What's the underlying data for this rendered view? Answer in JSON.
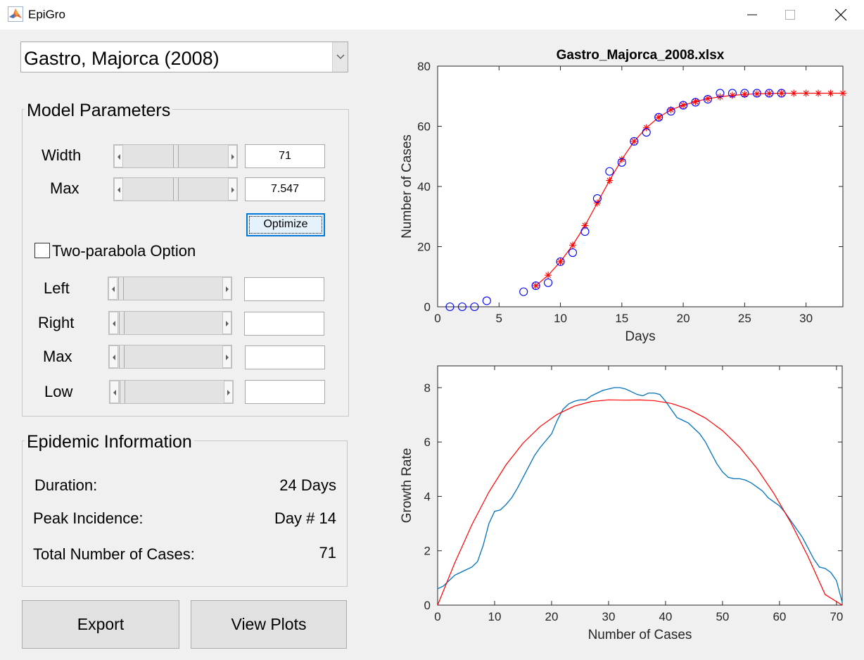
{
  "window": {
    "title": "EpiGro",
    "icon": "matlab-icon"
  },
  "dataset_select": {
    "selected": "Gastro, Majorca (2008)"
  },
  "model_params": {
    "title": "Model Parameters",
    "width_label": "Width",
    "width_value": "71",
    "max_label": "Max",
    "max_value": "7.547",
    "optimize_label": "Optimize",
    "two_parabola_label": "Two-parabola Option",
    "two_parabola_checked": false,
    "left_label": "Left",
    "right_label": "Right",
    "max2_label": "Max",
    "low_label": "Low",
    "left_value": "",
    "right_value": "",
    "max2_value": "",
    "low_value": ""
  },
  "epidemic_info": {
    "title": "Epidemic Information",
    "duration_label": "Duration:",
    "duration_value": "24 Days",
    "peak_label": "Peak Incidence:",
    "peak_value": "Day # 14",
    "total_label": "Total Number of Cases:",
    "total_value": "71"
  },
  "buttons": {
    "export": "Export",
    "view_plots": "View Plots"
  },
  "colors": {
    "observed": "#0000ff",
    "model": "#ff0000",
    "growth": "#0072bd",
    "fit": "#ff0000"
  },
  "chart_data": [
    {
      "type": "line",
      "title": "Gastro_Majorca_2008.xlsx",
      "xlabel": "Days",
      "ylabel": "Number of Cases",
      "xlim": [
        0,
        33
      ],
      "ylim": [
        0,
        80
      ],
      "xticks": [
        0,
        5,
        10,
        15,
        20,
        25,
        30
      ],
      "yticks": [
        0,
        20,
        40,
        60,
        80
      ],
      "series": [
        {
          "marker": "circle",
          "x": [
            1,
            2,
            3,
            4,
            7,
            8,
            9,
            10,
            11,
            12,
            13,
            14,
            15,
            16,
            17,
            18,
            19,
            20,
            21,
            22,
            23,
            24,
            25,
            26,
            27,
            28
          ],
          "y": [
            0,
            0,
            0,
            2,
            5,
            7,
            8,
            15,
            18,
            25,
            36,
            45,
            48,
            55,
            58,
            63,
            65,
            67,
            68,
            69,
            71,
            71,
            71,
            71,
            71,
            71
          ]
        },
        {
          "marker": "asterisk-line",
          "x": [
            8,
            9,
            10,
            11,
            12,
            13,
            14,
            15,
            16,
            17,
            18,
            19,
            20,
            21,
            22,
            23,
            24,
            25,
            26,
            27,
            28,
            29,
            30,
            31,
            32,
            33
          ],
          "y": [
            7,
            10.5,
            15,
            20.5,
            27,
            34.5,
            42,
            49,
            55,
            59.5,
            63,
            65.5,
            67,
            68.2,
            69.2,
            69.8,
            70.3,
            70.6,
            70.8,
            70.9,
            71,
            71,
            71,
            71,
            71,
            71
          ]
        }
      ]
    },
    {
      "type": "line",
      "title": "",
      "xlabel": "Number of Cases",
      "ylabel": "Growth Rate",
      "xlim": [
        0,
        71
      ],
      "ylim": [
        0,
        8.8
      ],
      "xticks": [
        0,
        10,
        20,
        30,
        40,
        50,
        60,
        70
      ],
      "yticks": [
        0,
        2,
        4,
        6,
        8
      ],
      "series": [
        {
          "x": [
            0,
            1,
            2,
            3,
            4,
            5,
            6,
            7,
            8,
            9,
            10,
            11,
            12,
            13,
            14,
            15,
            16,
            17,
            18,
            19,
            20,
            21,
            22,
            23,
            24,
            25,
            26,
            27,
            28,
            29,
            30,
            31,
            32,
            33,
            34,
            35,
            36,
            37,
            38,
            39,
            40,
            41,
            42,
            43,
            44,
            45,
            46,
            47,
            48,
            49,
            50,
            51,
            52,
            53,
            54,
            55,
            56,
            57,
            58,
            59,
            60,
            61,
            62,
            63,
            64,
            65,
            66,
            67,
            68,
            69,
            70,
            71
          ],
          "y": [
            0.6,
            0.7,
            0.9,
            1.1,
            1.2,
            1.3,
            1.4,
            1.6,
            2.2,
            3.0,
            3.45,
            3.5,
            3.7,
            3.95,
            4.3,
            4.7,
            5.1,
            5.5,
            5.8,
            6.05,
            6.3,
            6.8,
            7.2,
            7.4,
            7.5,
            7.55,
            7.55,
            7.7,
            7.8,
            7.9,
            7.95,
            8.0,
            8.0,
            7.95,
            7.85,
            7.75,
            7.7,
            7.8,
            7.8,
            7.75,
            7.5,
            7.2,
            6.9,
            6.8,
            6.7,
            6.5,
            6.3,
            6.0,
            5.6,
            5.2,
            4.9,
            4.7,
            4.65,
            4.65,
            4.6,
            4.5,
            4.35,
            4.2,
            3.95,
            3.8,
            3.65,
            3.4,
            3.1,
            2.8,
            2.5,
            2.1,
            1.7,
            1.4,
            1.35,
            1.2,
            0.9,
            0.1
          ]
        },
        {
          "x": [
            0,
            3,
            6,
            9,
            12,
            15,
            18,
            21,
            24,
            27,
            30,
            33,
            35.5,
            38,
            41,
            44,
            47,
            50,
            53,
            56,
            59,
            62,
            65,
            68,
            71
          ],
          "y": [
            0,
            1.55,
            2.95,
            4.16,
            5.16,
            5.96,
            6.57,
            7.02,
            7.32,
            7.49,
            7.55,
            7.54,
            7.547,
            7.52,
            7.42,
            7.21,
            6.88,
            6.42,
            5.81,
            5.04,
            4.11,
            3.03,
            1.79,
            0.39,
            0
          ]
        }
      ]
    }
  ]
}
